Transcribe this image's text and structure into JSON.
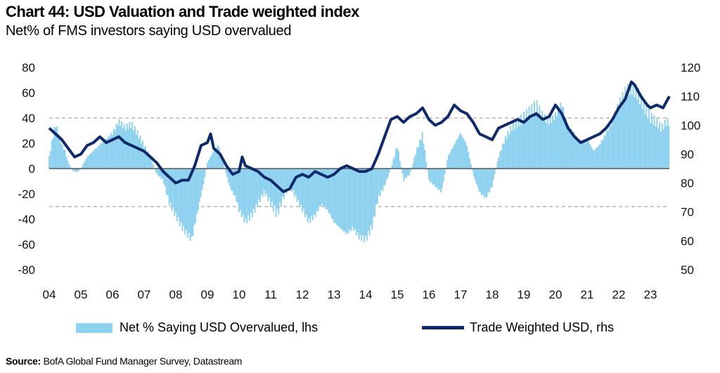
{
  "title": "Chart 44: USD Valuation and Trade weighted index",
  "subtitle": "Net% of FMS investors saying USD overvalued",
  "source_label": "Source:",
  "source_text": "BofA Global Fund Manager Survey, Datastream",
  "colors": {
    "bars": "#8fd2ef",
    "line": "#0e2a6b",
    "zero": "#555555",
    "dashed": "#b5b5b5"
  },
  "chart_data": {
    "type": "bar+line",
    "x_tick_labels": [
      "04",
      "05",
      "06",
      "07",
      "08",
      "09",
      "10",
      "11",
      "12",
      "13",
      "14",
      "15",
      "16",
      "17",
      "18",
      "19",
      "20",
      "21",
      "22",
      "23"
    ],
    "xlim": [
      2004.0,
      2023.6
    ],
    "left_axis": {
      "ticks": [
        "80",
        "60",
        "40",
        "20",
        "0",
        "-20",
        "-40",
        "-60",
        "-80"
      ],
      "ylim": [
        -80,
        80
      ]
    },
    "right_axis": {
      "ticks": [
        "120",
        "110",
        "100",
        "90",
        "80",
        "70",
        "60",
        "50"
      ],
      "ylim": [
        50,
        120
      ]
    },
    "reference_lines_lhs": [
      40,
      -30
    ],
    "legend": [
      {
        "label": "Net % Saying USD Overvalued, lhs",
        "kind": "bar"
      },
      {
        "label": "Trade Weighted USD, rhs",
        "kind": "line"
      }
    ],
    "series": [
      {
        "name": "Net % Saying USD Overvalued, lhs",
        "axis": "left",
        "kind": "bar",
        "points": [
          [
            2004.0,
            10
          ],
          [
            2004.1,
            25
          ],
          [
            2004.2,
            38
          ],
          [
            2004.3,
            30
          ],
          [
            2004.4,
            20
          ],
          [
            2004.5,
            15
          ],
          [
            2004.6,
            5
          ],
          [
            2004.75,
            -2
          ],
          [
            2004.9,
            -3
          ],
          [
            2005.0,
            0
          ],
          [
            2005.2,
            10
          ],
          [
            2005.4,
            15
          ],
          [
            2005.6,
            20
          ],
          [
            2005.8,
            25
          ],
          [
            2006.0,
            30
          ],
          [
            2006.2,
            40
          ],
          [
            2006.4,
            35
          ],
          [
            2006.6,
            38
          ],
          [
            2006.8,
            30
          ],
          [
            2007.0,
            20
          ],
          [
            2007.2,
            10
          ],
          [
            2007.4,
            -5
          ],
          [
            2007.6,
            -10
          ],
          [
            2007.8,
            -30
          ],
          [
            2008.0,
            -40
          ],
          [
            2008.2,
            -50
          ],
          [
            2008.35,
            -55
          ],
          [
            2008.5,
            -60
          ],
          [
            2008.7,
            -35
          ],
          [
            2008.9,
            -10
          ],
          [
            2009.0,
            5
          ],
          [
            2009.2,
            15
          ],
          [
            2009.35,
            20
          ],
          [
            2009.5,
            5
          ],
          [
            2009.7,
            -15
          ],
          [
            2009.9,
            -25
          ],
          [
            2010.0,
            -35
          ],
          [
            2010.2,
            -45
          ],
          [
            2010.4,
            -40
          ],
          [
            2010.6,
            -30
          ],
          [
            2010.8,
            -20
          ],
          [
            2011.0,
            -30
          ],
          [
            2011.2,
            -40
          ],
          [
            2011.4,
            -25
          ],
          [
            2011.6,
            -15
          ],
          [
            2011.8,
            -25
          ],
          [
            2012.0,
            -35
          ],
          [
            2012.2,
            -45
          ],
          [
            2012.4,
            -40
          ],
          [
            2012.6,
            -30
          ],
          [
            2012.8,
            -35
          ],
          [
            2013.0,
            -45
          ],
          [
            2013.2,
            -50
          ],
          [
            2013.4,
            -55
          ],
          [
            2013.6,
            -50
          ],
          [
            2013.8,
            -58
          ],
          [
            2014.0,
            -60
          ],
          [
            2014.2,
            -50
          ],
          [
            2014.4,
            -25
          ],
          [
            2014.6,
            -15
          ],
          [
            2014.8,
            0
          ],
          [
            2015.0,
            20
          ],
          [
            2015.2,
            -10
          ],
          [
            2015.4,
            -5
          ],
          [
            2015.6,
            15
          ],
          [
            2015.8,
            30
          ],
          [
            2016.0,
            -10
          ],
          [
            2016.2,
            -15
          ],
          [
            2016.4,
            -20
          ],
          [
            2016.6,
            10
          ],
          [
            2016.8,
            20
          ],
          [
            2017.0,
            30
          ],
          [
            2017.2,
            20
          ],
          [
            2017.4,
            -5
          ],
          [
            2017.6,
            -20
          ],
          [
            2017.8,
            -25
          ],
          [
            2018.0,
            -15
          ],
          [
            2018.2,
            10
          ],
          [
            2018.4,
            25
          ],
          [
            2018.6,
            35
          ],
          [
            2018.8,
            40
          ],
          [
            2019.0,
            45
          ],
          [
            2019.2,
            50
          ],
          [
            2019.4,
            55
          ],
          [
            2019.6,
            45
          ],
          [
            2019.8,
            40
          ],
          [
            2020.0,
            45
          ],
          [
            2020.2,
            55
          ],
          [
            2020.4,
            35
          ],
          [
            2020.6,
            30
          ],
          [
            2020.8,
            20
          ],
          [
            2021.0,
            25
          ],
          [
            2021.2,
            15
          ],
          [
            2021.4,
            20
          ],
          [
            2021.6,
            30
          ],
          [
            2021.8,
            40
          ],
          [
            2022.0,
            55
          ],
          [
            2022.2,
            65
          ],
          [
            2022.4,
            70
          ],
          [
            2022.6,
            65
          ],
          [
            2022.8,
            55
          ],
          [
            2023.0,
            45
          ],
          [
            2023.2,
            40
          ],
          [
            2023.35,
            35
          ],
          [
            2023.5,
            40
          ]
        ]
      },
      {
        "name": "Trade Weighted USD, rhs",
        "axis": "right",
        "kind": "line",
        "points": [
          [
            2004.0,
            99
          ],
          [
            2004.2,
            97
          ],
          [
            2004.4,
            95
          ],
          [
            2004.6,
            92
          ],
          [
            2004.8,
            89
          ],
          [
            2005.0,
            90
          ],
          [
            2005.2,
            93
          ],
          [
            2005.4,
            94
          ],
          [
            2005.6,
            96
          ],
          [
            2005.8,
            94
          ],
          [
            2006.0,
            95
          ],
          [
            2006.2,
            96
          ],
          [
            2006.4,
            94
          ],
          [
            2006.6,
            93
          ],
          [
            2006.8,
            92
          ],
          [
            2007.0,
            91
          ],
          [
            2007.2,
            89
          ],
          [
            2007.4,
            87
          ],
          [
            2007.6,
            84
          ],
          [
            2007.8,
            82
          ],
          [
            2008.0,
            80
          ],
          [
            2008.2,
            81
          ],
          [
            2008.4,
            81
          ],
          [
            2008.6,
            86
          ],
          [
            2008.8,
            93
          ],
          [
            2009.0,
            94
          ],
          [
            2009.1,
            97
          ],
          [
            2009.2,
            92
          ],
          [
            2009.4,
            90
          ],
          [
            2009.6,
            86
          ],
          [
            2009.8,
            83
          ],
          [
            2010.0,
            84
          ],
          [
            2010.1,
            89
          ],
          [
            2010.2,
            86
          ],
          [
            2010.4,
            85
          ],
          [
            2010.6,
            84
          ],
          [
            2010.8,
            82
          ],
          [
            2011.0,
            81
          ],
          [
            2011.2,
            79
          ],
          [
            2011.4,
            77
          ],
          [
            2011.6,
            78
          ],
          [
            2011.8,
            82
          ],
          [
            2012.0,
            83
          ],
          [
            2012.2,
            82
          ],
          [
            2012.4,
            84
          ],
          [
            2012.6,
            83
          ],
          [
            2012.8,
            82
          ],
          [
            2013.0,
            83
          ],
          [
            2013.2,
            85
          ],
          [
            2013.4,
            86
          ],
          [
            2013.6,
            85
          ],
          [
            2013.8,
            84
          ],
          [
            2014.0,
            84
          ],
          [
            2014.2,
            85
          ],
          [
            2014.4,
            90
          ],
          [
            2014.6,
            96
          ],
          [
            2014.8,
            102
          ],
          [
            2015.0,
            103
          ],
          [
            2015.2,
            101
          ],
          [
            2015.4,
            103
          ],
          [
            2015.6,
            104
          ],
          [
            2015.8,
            106
          ],
          [
            2016.0,
            102
          ],
          [
            2016.2,
            100
          ],
          [
            2016.4,
            101
          ],
          [
            2016.6,
            103
          ],
          [
            2016.8,
            107
          ],
          [
            2017.0,
            105
          ],
          [
            2017.2,
            104
          ],
          [
            2017.4,
            101
          ],
          [
            2017.6,
            97
          ],
          [
            2017.8,
            96
          ],
          [
            2018.0,
            95
          ],
          [
            2018.2,
            99
          ],
          [
            2018.4,
            100
          ],
          [
            2018.6,
            101
          ],
          [
            2018.8,
            102
          ],
          [
            2019.0,
            101
          ],
          [
            2019.2,
            103
          ],
          [
            2019.4,
            104
          ],
          [
            2019.6,
            102
          ],
          [
            2019.8,
            103
          ],
          [
            2020.0,
            107
          ],
          [
            2020.2,
            104
          ],
          [
            2020.4,
            99
          ],
          [
            2020.6,
            96
          ],
          [
            2020.8,
            94
          ],
          [
            2021.0,
            95
          ],
          [
            2021.2,
            96
          ],
          [
            2021.4,
            97
          ],
          [
            2021.6,
            99
          ],
          [
            2021.8,
            102
          ],
          [
            2022.0,
            106
          ],
          [
            2022.2,
            109
          ],
          [
            2022.4,
            115
          ],
          [
            2022.5,
            114
          ],
          [
            2022.7,
            110
          ],
          [
            2022.9,
            107
          ],
          [
            2023.0,
            106
          ],
          [
            2023.2,
            107
          ],
          [
            2023.4,
            106
          ],
          [
            2023.6,
            110
          ]
        ]
      }
    ]
  }
}
